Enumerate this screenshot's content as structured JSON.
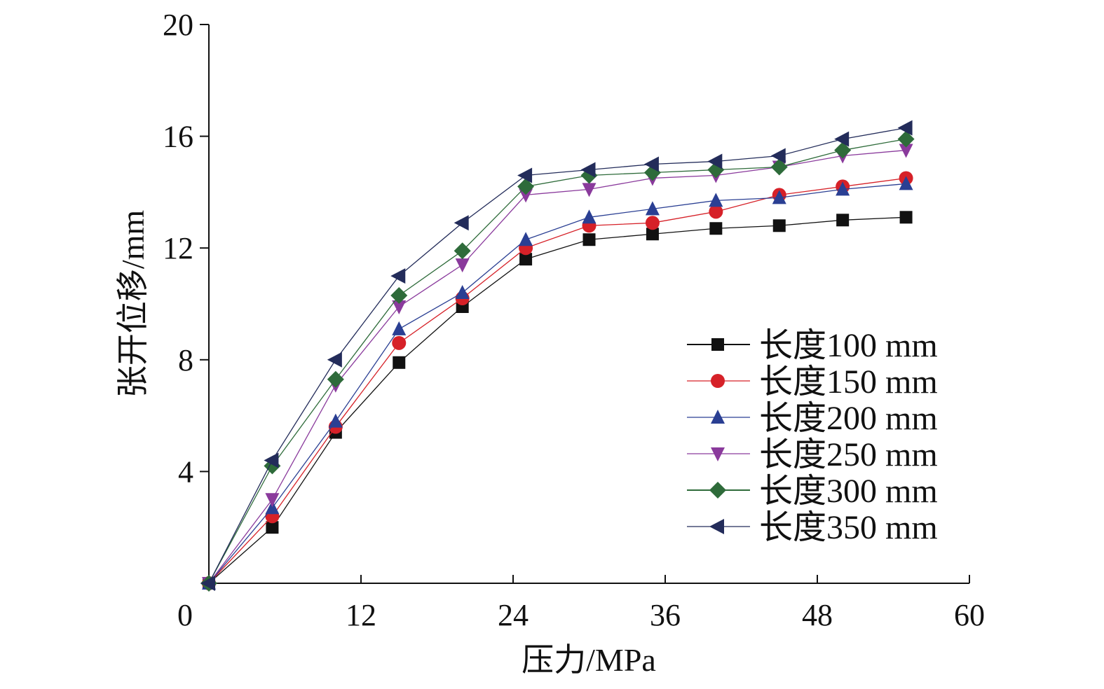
{
  "chart_data": {
    "type": "line",
    "title": "",
    "xlabel": "压力/MPa",
    "ylabel": "张开位移/mm",
    "xlim": [
      0,
      60
    ],
    "ylim": [
      0,
      20
    ],
    "xticks": [
      0,
      12,
      24,
      36,
      48,
      60
    ],
    "yticks": [
      4,
      8,
      12,
      16,
      20
    ],
    "xtick_labels": [
      "0",
      "12",
      "24",
      "36",
      "48",
      "60"
    ],
    "ytick_labels": [
      "4",
      "8",
      "12",
      "16",
      "20"
    ],
    "grid": false,
    "legend_position": "center-right",
    "x": [
      0,
      5,
      10,
      15,
      20,
      25,
      30,
      35,
      40,
      45,
      50,
      55
    ],
    "series": [
      {
        "name": "长度100 mm",
        "color": "#111111",
        "marker": "square",
        "values": [
          0,
          2.0,
          5.4,
          7.9,
          9.9,
          11.6,
          12.3,
          12.5,
          12.7,
          12.8,
          13.0,
          13.1
        ]
      },
      {
        "name": "长度150 mm",
        "color": "#d62128",
        "marker": "circle",
        "values": [
          0,
          2.4,
          5.6,
          8.6,
          10.2,
          12.0,
          12.8,
          12.9,
          13.3,
          13.9,
          14.2,
          14.5
        ]
      },
      {
        "name": "长度200 mm",
        "color": "#2a3f93",
        "marker": "triangle-up",
        "values": [
          0,
          2.7,
          5.8,
          9.1,
          10.4,
          12.3,
          13.1,
          13.4,
          13.7,
          13.8,
          14.1,
          14.3
        ]
      },
      {
        "name": "长度250 mm",
        "color": "#8a3a9c",
        "marker": "triangle-down",
        "values": [
          0,
          3.0,
          7.1,
          9.9,
          11.4,
          13.9,
          14.1,
          14.5,
          14.6,
          14.9,
          15.3,
          15.5
        ]
      },
      {
        "name": "长度300 mm",
        "color": "#2e6b3a",
        "marker": "diamond",
        "values": [
          0,
          4.2,
          7.3,
          10.3,
          11.9,
          14.2,
          14.6,
          14.7,
          14.8,
          14.9,
          15.5,
          15.9
        ]
      },
      {
        "name": "长度350 mm",
        "color": "#232c5a",
        "marker": "triangle-left",
        "values": [
          0,
          4.4,
          8.0,
          11.0,
          12.9,
          14.6,
          14.8,
          15.0,
          15.1,
          15.3,
          15.9,
          16.3
        ]
      }
    ]
  }
}
